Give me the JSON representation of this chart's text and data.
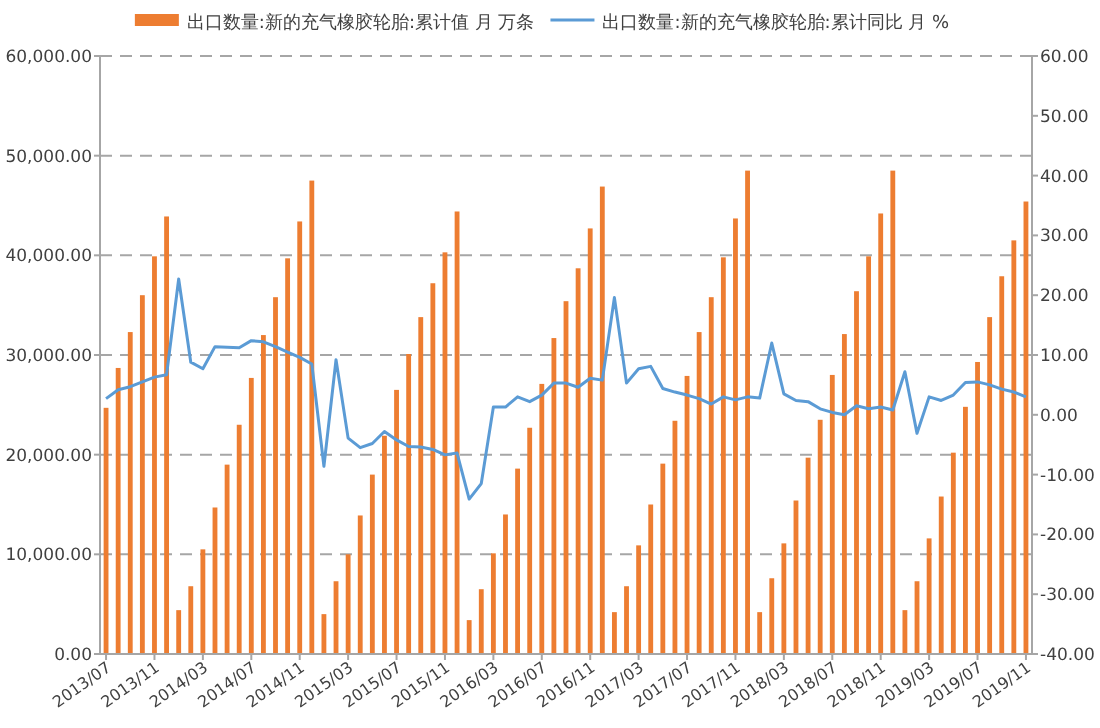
{
  "chart_data": {
    "type": "bar",
    "categories": [
      "2013/07",
      null,
      null,
      null,
      "2013/11",
      null,
      null,
      null,
      "2014/03",
      null,
      null,
      null,
      "2014/07",
      null,
      null,
      null,
      "2014/11",
      null,
      null,
      null,
      "2015/03",
      null,
      null,
      null,
      "2015/07",
      null,
      null,
      null,
      "2015/11",
      null,
      null,
      null,
      "2016/03",
      null,
      null,
      null,
      "2016/07",
      null,
      null,
      null,
      "2016/11",
      null,
      null,
      null,
      "2017/03",
      null,
      null,
      null,
      "2017/07",
      null,
      null,
      null,
      "2017/11",
      null,
      null,
      null,
      "2018/03",
      null,
      null,
      null,
      "2018/07",
      null,
      null,
      null,
      "2018/11",
      null,
      null,
      null,
      "2019/03",
      null,
      null,
      null,
      "2019/07",
      null,
      null,
      null,
      "2019/11"
    ],
    "series": [
      {
        "name": "出口数量:新的充气橡胶轮胎:累计值 月 万条",
        "color": "#ed7d31",
        "values": [
          24700,
          28700,
          32300,
          36000,
          39900,
          43900,
          4400,
          6800,
          10500,
          14700,
          19000,
          23000,
          27700,
          32000,
          35800,
          39700,
          43400,
          47500,
          4000,
          7300,
          10000,
          13900,
          18000,
          21900,
          26500,
          30100,
          33800,
          37200,
          40300,
          44400,
          3400,
          6500,
          10100,
          14000,
          18600,
          22700,
          27100,
          31700,
          35400,
          38700,
          42700,
          46900,
          4200,
          6800,
          10900,
          15000,
          19100,
          23400,
          27900,
          32300,
          35800,
          39800,
          43700,
          48500,
          4200,
          7600,
          11100,
          15400,
          19700,
          23500,
          28000,
          32100,
          36400,
          39900,
          44200,
          48500,
          4400,
          7300,
          11600,
          15800,
          20200,
          24800,
          29300,
          33800,
          37900,
          41500,
          45400
        ]
      },
      {
        "type": "line",
        "axis": "y2",
        "name": "出口数量:新的充气橡胶轮胎:累计同比 月 %",
        "color": "#5b9bd5",
        "values": [
          2.7,
          4.2,
          4.7,
          5.5,
          6.3,
          6.7,
          22.7,
          8.8,
          7.7,
          11.4,
          11.3,
          11.2,
          12.4,
          12.2,
          11.4,
          10.5,
          9.6,
          8.5,
          -8.6,
          9.2,
          -3.9,
          -5.5,
          -4.8,
          -2.8,
          -4.2,
          -5.3,
          -5.4,
          -5.8,
          -6.7,
          -6.4,
          -14.1,
          -11.5,
          1.3,
          1.3,
          3.0,
          2.2,
          3.3,
          5.3,
          5.3,
          4.6,
          6.1,
          5.8,
          19.6,
          5.3,
          7.7,
          8.1,
          4.4,
          3.8,
          3.3,
          2.7,
          1.8,
          3.0,
          2.5,
          3.0,
          2.8,
          12.0,
          3.5,
          2.4,
          2.2,
          1.0,
          0.4,
          0.0,
          1.5,
          1.0,
          1.3,
          0.8,
          7.2,
          -3.1,
          3.0,
          2.4,
          3.3,
          5.4,
          5.5,
          5.0,
          4.3,
          3.8,
          3.0
        ]
      }
    ],
    "ylim": [
      0,
      60000
    ],
    "yticks": [
      {
        "value": 0,
        "label": "0.00"
      },
      {
        "value": 10000,
        "label": "10,000.00"
      },
      {
        "value": 20000,
        "label": "20,000.00"
      },
      {
        "value": 30000,
        "label": "30,000.00"
      },
      {
        "value": 40000,
        "label": "40,000.00"
      },
      {
        "value": 50000,
        "label": "50,000.00"
      },
      {
        "value": 60000,
        "label": "60,000.00"
      }
    ],
    "y2lim": [
      -40,
      60
    ],
    "y2ticks": [
      {
        "value": -40,
        "label": "-40.00"
      },
      {
        "value": -30,
        "label": "-30.00"
      },
      {
        "value": -20,
        "label": "-20.00"
      },
      {
        "value": -10,
        "label": "-10.00"
      },
      {
        "value": 0,
        "label": "0.00"
      },
      {
        "value": 10,
        "label": "10.00"
      },
      {
        "value": 20,
        "label": "20.00"
      },
      {
        "value": 30,
        "label": "30.00"
      },
      {
        "value": 40,
        "label": "40.00"
      },
      {
        "value": 50,
        "label": "50.00"
      },
      {
        "value": 60,
        "label": "60.00"
      }
    ],
    "grid": "y",
    "legend": "top"
  }
}
